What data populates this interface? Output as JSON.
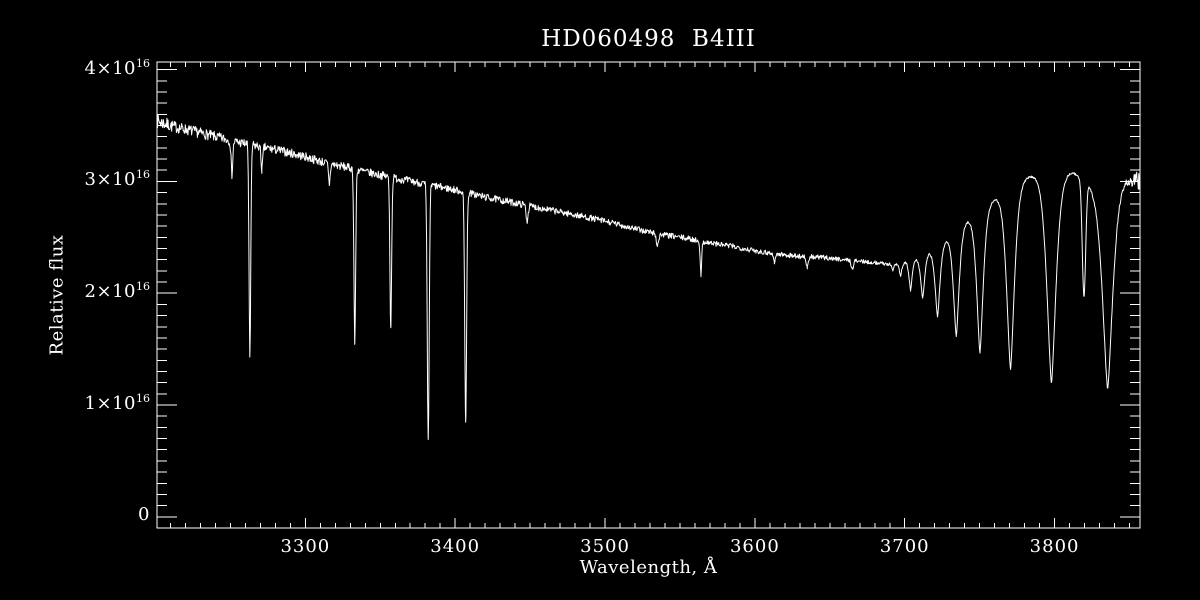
{
  "window": {
    "background": "#000000",
    "foreground": "#ffffff"
  },
  "chart_data": {
    "type": "line",
    "title": "HD060498  B4III",
    "xlabel": "Wavelength, Å",
    "ylabel": "Relative flux",
    "line_color": "#ffffff",
    "background": "#000000",
    "x_range": [
      3201,
      3857
    ],
    "y_range_e16": [
      -0.1,
      4.068
    ],
    "x_major_ticks": [
      3300,
      3400,
      3500,
      3600,
      3700,
      3800
    ],
    "x_tick_labels": [
      "3300",
      "3400",
      "3500",
      "3600",
      "3700",
      "3800"
    ],
    "x_minor_step": 10,
    "y_major_ticks_e16": [
      0,
      1,
      2,
      3,
      4
    ],
    "y_tick_labels": [
      {
        "value_e16": 0,
        "base": "0",
        "exp": ""
      },
      {
        "value_e16": 1,
        "base": "1×10",
        "exp": "16"
      },
      {
        "value_e16": 2,
        "base": "2×10",
        "exp": "16"
      },
      {
        "value_e16": 3,
        "base": "3×10",
        "exp": "16"
      },
      {
        "value_e16": 4,
        "base": "4×10",
        "exp": "16"
      }
    ],
    "y_minor_step_e16": 0.1,
    "grid": false,
    "legend": false,
    "series": {
      "name": "spectrum",
      "flux_unit_e16": true,
      "continuum_anchors": [
        [
          3201,
          3.54
        ],
        [
          3212,
          3.49
        ],
        [
          3225,
          3.45
        ],
        [
          3240,
          3.4
        ],
        [
          3255,
          3.35
        ],
        [
          3270,
          3.31
        ],
        [
          3285,
          3.27
        ],
        [
          3300,
          3.22
        ],
        [
          3315,
          3.16
        ],
        [
          3330,
          3.12
        ],
        [
          3345,
          3.07
        ],
        [
          3360,
          3.03
        ],
        [
          3375,
          2.99
        ],
        [
          3390,
          2.95
        ],
        [
          3405,
          2.91
        ],
        [
          3420,
          2.86
        ],
        [
          3435,
          2.82
        ],
        [
          3450,
          2.78
        ],
        [
          3465,
          2.74
        ],
        [
          3480,
          2.7
        ],
        [
          3495,
          2.66
        ],
        [
          3510,
          2.61
        ],
        [
          3525,
          2.56
        ],
        [
          3540,
          2.52
        ],
        [
          3555,
          2.49
        ],
        [
          3570,
          2.45
        ],
        [
          3585,
          2.42
        ],
        [
          3600,
          2.38
        ],
        [
          3615,
          2.35
        ],
        [
          3630,
          2.33
        ],
        [
          3645,
          2.32
        ],
        [
          3660,
          2.3
        ],
        [
          3675,
          2.28
        ],
        [
          3690,
          2.26
        ],
        [
          3700,
          2.28
        ],
        [
          3710,
          2.32
        ],
        [
          3716,
          2.37
        ],
        [
          3722,
          2.41
        ],
        [
          3728,
          2.49
        ],
        [
          3734,
          2.55
        ],
        [
          3742,
          2.66
        ],
        [
          3750,
          2.74
        ],
        [
          3760,
          2.85
        ],
        [
          3771,
          2.96
        ],
        [
          3784,
          3.05
        ],
        [
          3800,
          3.07
        ],
        [
          3812,
          3.08
        ],
        [
          3820,
          3.02
        ],
        [
          3826,
          2.96
        ],
        [
          3835,
          2.99
        ],
        [
          3847,
          3.02
        ],
        [
          3857,
          3.0
        ]
      ],
      "absorption_lines": [
        {
          "center": 3251.0,
          "depth_e16": 0.3,
          "sigma": 0.8,
          "p": 2
        },
        {
          "center": 3263.0,
          "depth_e16": 1.89,
          "sigma": 0.8,
          "p": 2
        },
        {
          "center": 3271.0,
          "depth_e16": 0.2,
          "sigma": 0.8,
          "p": 2
        },
        {
          "center": 3316.0,
          "depth_e16": 0.18,
          "sigma": 0.8,
          "p": 2
        },
        {
          "center": 3333.0,
          "depth_e16": 1.56,
          "sigma": 0.8,
          "p": 2
        },
        {
          "center": 3357.0,
          "depth_e16": 1.34,
          "sigma": 0.8,
          "p": 2
        },
        {
          "center": 3382.0,
          "depth_e16": 2.3,
          "sigma": 0.9,
          "p": 2
        },
        {
          "center": 3407.0,
          "depth_e16": 2.03,
          "sigma": 0.9,
          "p": 2
        },
        {
          "center": 3448.0,
          "depth_e16": 0.14,
          "sigma": 0.9,
          "p": 2
        },
        {
          "center": 3535.0,
          "depth_e16": 0.1,
          "sigma": 1.2,
          "p": 2
        },
        {
          "center": 3564.0,
          "depth_e16": 0.31,
          "sigma": 0.7,
          "p": 2
        },
        {
          "center": 3613.0,
          "depth_e16": 0.07,
          "sigma": 1.0,
          "p": 2
        },
        {
          "center": 3635.0,
          "depth_e16": 0.1,
          "sigma": 1.0,
          "p": 2
        },
        {
          "center": 3665.0,
          "depth_e16": 0.08,
          "sigma": 1.0,
          "p": 2
        },
        {
          "center": 3692.0,
          "depth_e16": 0.06,
          "sigma": 1.0,
          "p": 1.5
        },
        {
          "center": 3697.2,
          "depth_e16": 0.12,
          "sigma": 1.2,
          "p": 1.5
        },
        {
          "center": 3703.9,
          "depth_e16": 0.27,
          "sigma": 1.5,
          "p": 1.5
        },
        {
          "center": 3712.0,
          "depth_e16": 0.38,
          "sigma": 1.9,
          "p": 1.5
        },
        {
          "center": 3721.9,
          "depth_e16": 0.62,
          "sigma": 2.3,
          "p": 1.5
        },
        {
          "center": 3734.4,
          "depth_e16": 0.94,
          "sigma": 2.7,
          "p": 1.5
        },
        {
          "center": 3750.2,
          "depth_e16": 1.27,
          "sigma": 3.1,
          "p": 1.5
        },
        {
          "center": 3770.6,
          "depth_e16": 1.63,
          "sigma": 3.7,
          "p": 1.5
        },
        {
          "center": 3797.9,
          "depth_e16": 1.87,
          "sigma": 4.3,
          "p": 1.5
        },
        {
          "center": 3819.6,
          "depth_e16": 1.05,
          "sigma": 1.6,
          "p": 2
        },
        {
          "center": 3835.4,
          "depth_e16": 1.84,
          "sigma": 4.9,
          "p": 1.5
        }
      ],
      "noise_anchors": [
        [
          3201,
          0.065
        ],
        [
          3215,
          0.05
        ],
        [
          3260,
          0.042
        ],
        [
          3320,
          0.038
        ],
        [
          3400,
          0.033
        ],
        [
          3480,
          0.028
        ],
        [
          3560,
          0.025
        ],
        [
          3640,
          0.022
        ],
        [
          3690,
          0.015
        ],
        [
          3705,
          0.01
        ],
        [
          3790,
          0.008
        ],
        [
          3830,
          0.01
        ],
        [
          3845,
          0.02
        ],
        [
          3851,
          0.05
        ],
        [
          3855,
          0.09
        ],
        [
          3857,
          0.1
        ]
      ],
      "noise_seed": 7
    }
  }
}
